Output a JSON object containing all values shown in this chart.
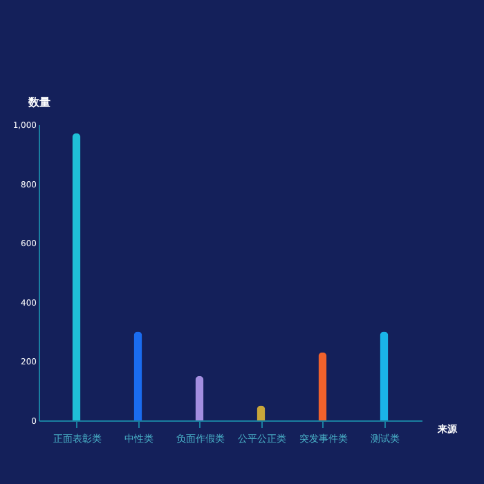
{
  "chart_data": {
    "type": "bar",
    "ylabel": "数量",
    "xlabel": "来源",
    "categories": [
      "正面表彰类",
      "中性类",
      "负面作假类",
      "公平公正类",
      "突发事件类",
      "测试类"
    ],
    "values": [
      970,
      300,
      150,
      50,
      230,
      300
    ],
    "colors": [
      "#1fc0d8",
      "#1a6cf0",
      "#a38ee0",
      "#c9a63a",
      "#f0622c",
      "#1ab4e8"
    ],
    "ylim": [
      0,
      1000
    ],
    "yticks": [
      0,
      200,
      400,
      600,
      {
        "value": 800,
        "label": "800"
      },
      {
        "value": 1000,
        "label": "1,000"
      }
    ],
    "grid": false
  }
}
